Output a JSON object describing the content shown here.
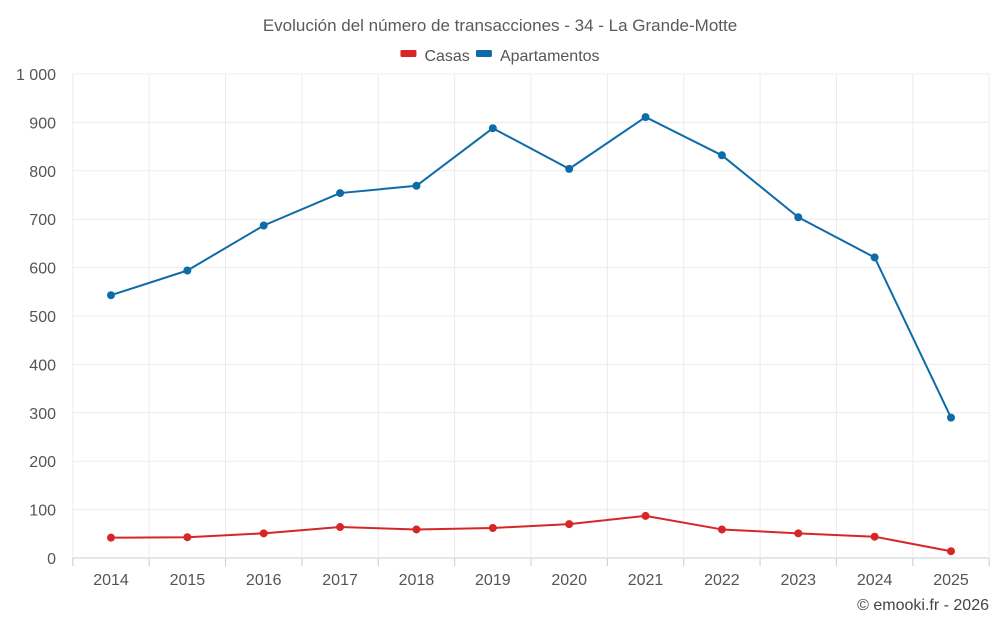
{
  "chart_data": {
    "type": "line",
    "title": "Evolución del número de transacciones - 34 - La Grande-Motte",
    "xlabel": "",
    "ylabel": "",
    "categories": [
      "2014",
      "2015",
      "2016",
      "2017",
      "2018",
      "2019",
      "2020",
      "2021",
      "2022",
      "2023",
      "2024",
      "2025"
    ],
    "ylim": [
      0,
      1000
    ],
    "yticks": [
      0,
      100,
      200,
      300,
      400,
      500,
      600,
      700,
      800,
      900,
      1000
    ],
    "ytick_labels": [
      "0",
      "100",
      "200",
      "300",
      "400",
      "500",
      "600",
      "700",
      "800",
      "900",
      "1 000"
    ],
    "grid": true,
    "legend_position": "top-center",
    "series": [
      {
        "name": "Casas",
        "color": "#d62728",
        "values": [
          42,
          43,
          51,
          64,
          59,
          62,
          70,
          87,
          59,
          51,
          44,
          14
        ]
      },
      {
        "name": "Apartamentos",
        "color": "#0e6ba8",
        "values": [
          543,
          594,
          687,
          754,
          769,
          888,
          804,
          911,
          832,
          704,
          621,
          290
        ]
      }
    ]
  },
  "credit": "© emooki.fr - 2026"
}
